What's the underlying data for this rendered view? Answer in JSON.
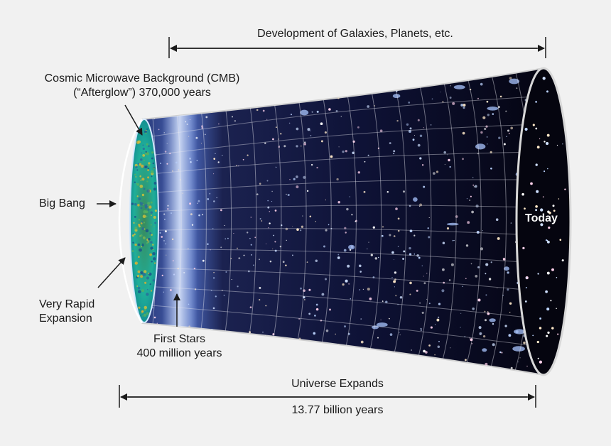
{
  "labels": {
    "development": "Development of Galaxies, Planets, etc.",
    "cmb_line1": "Cosmic Microwave Background (CMB)",
    "cmb_line2": "(“Afterglow”)  370,000 years",
    "big_bang": "Big Bang",
    "rapid_line1": "Very Rapid",
    "rapid_line2": "Expansion",
    "first_stars_line1": "First Stars",
    "first_stars_line2": "400 million years",
    "today": "Today",
    "universe_expands": "Universe Expands",
    "age": "13.77 billion years"
  },
  "colors": {
    "background": "#f1f1f1",
    "text": "#1a1a1a",
    "space": "#0a0a22",
    "cmb": "#1fae9a",
    "grid": "#e8e8f0",
    "today_label": "#ffffff"
  }
}
